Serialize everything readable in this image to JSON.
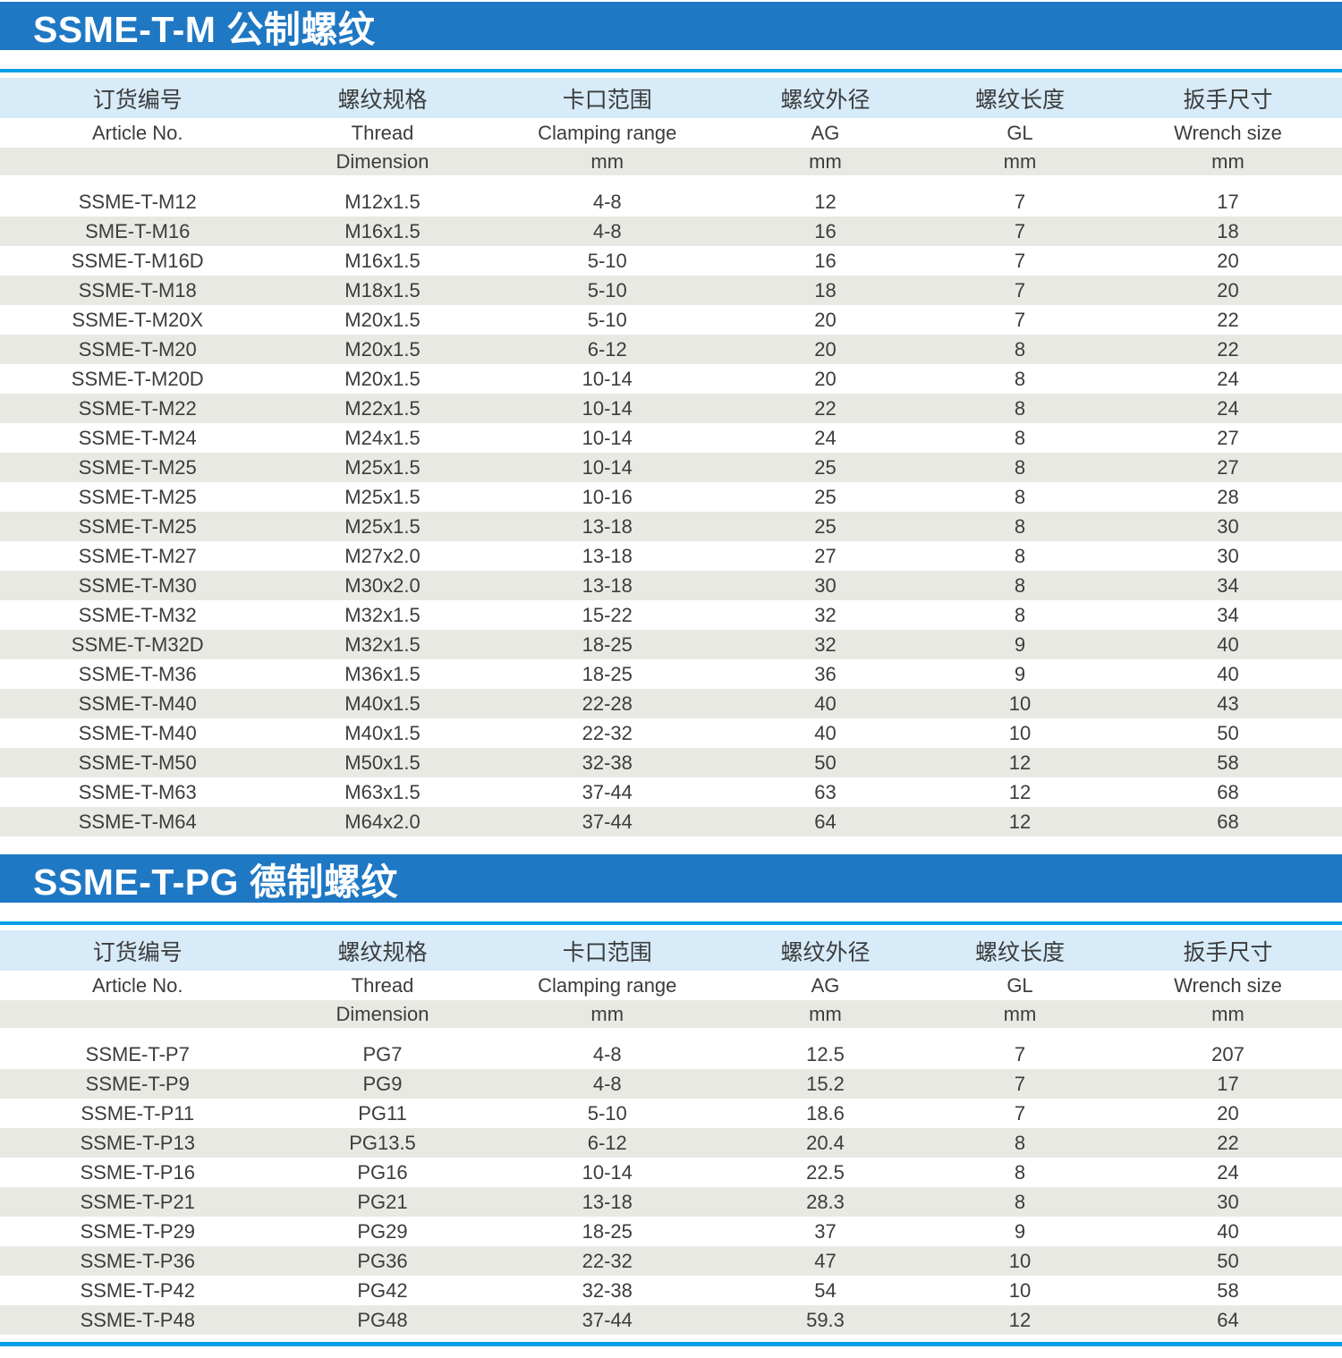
{
  "colors": {
    "title_bar_blue": "#1f78c4",
    "divider_blue": "#009ee8",
    "header_row_blue": "#d7ebf8",
    "alt_row_gray": "#e9e9e4",
    "text": "#3c3c3c",
    "title_text": "#ffffff"
  },
  "columns": [
    {
      "zh": "订货编号",
      "en": "Article No.",
      "unit": ""
    },
    {
      "zh": "螺纹规格",
      "en": "Thread",
      "unit": "Dimension"
    },
    {
      "zh": "卡口范围",
      "en": "Clamping range",
      "unit": "mm"
    },
    {
      "zh": "螺纹外径",
      "en": "AG",
      "unit": "mm"
    },
    {
      "zh": "螺纹长度",
      "en": "GL",
      "unit": "mm"
    },
    {
      "zh": "扳手尺寸",
      "en": "Wrench size",
      "unit": "mm"
    }
  ],
  "tables": [
    {
      "title": "SSME-T-M 公制螺纹",
      "rows": [
        [
          "SSME-T-M12",
          "M12x1.5",
          "4-8",
          "12",
          "7",
          "17"
        ],
        [
          "SME-T-M16",
          "M16x1.5",
          "4-8",
          "16",
          "7",
          "18"
        ],
        [
          "SSME-T-M16D",
          "M16x1.5",
          "5-10",
          "16",
          "7",
          "20"
        ],
        [
          "SSME-T-M18",
          "M18x1.5",
          "5-10",
          "18",
          "7",
          "20"
        ],
        [
          "SSME-T-M20X",
          "M20x1.5",
          "5-10",
          "20",
          "7",
          "22"
        ],
        [
          "SSME-T-M20",
          "M20x1.5",
          "6-12",
          "20",
          "8",
          "22"
        ],
        [
          "SSME-T-M20D",
          "M20x1.5",
          "10-14",
          "20",
          "8",
          "24"
        ],
        [
          "SSME-T-M22",
          "M22x1.5",
          "10-14",
          "22",
          "8",
          "24"
        ],
        [
          "SSME-T-M24",
          "M24x1.5",
          "10-14",
          "24",
          "8",
          "27"
        ],
        [
          "SSME-T-M25",
          "M25x1.5",
          "10-14",
          "25",
          "8",
          "27"
        ],
        [
          "SSME-T-M25",
          "M25x1.5",
          "10-16",
          "25",
          "8",
          "28"
        ],
        [
          "SSME-T-M25",
          "M25x1.5",
          "13-18",
          "25",
          "8",
          "30"
        ],
        [
          "SSME-T-M27",
          "M27x2.0",
          "13-18",
          "27",
          "8",
          "30"
        ],
        [
          "SSME-T-M30",
          "M30x2.0",
          "13-18",
          "30",
          "8",
          "34"
        ],
        [
          "SSME-T-M32",
          "M32x1.5",
          "15-22",
          "32",
          "8",
          "34"
        ],
        [
          "SSME-T-M32D",
          "M32x1.5",
          "18-25",
          "32",
          "9",
          "40"
        ],
        [
          "SSME-T-M36",
          "M36x1.5",
          "18-25",
          "36",
          "9",
          "40"
        ],
        [
          "SSME-T-M40",
          "M40x1.5",
          "22-28",
          "40",
          "10",
          "43"
        ],
        [
          "SSME-T-M40",
          "M40x1.5",
          "22-32",
          "40",
          "10",
          "50"
        ],
        [
          "SSME-T-M50",
          "M50x1.5",
          "32-38",
          "50",
          "12",
          "58"
        ],
        [
          "SSME-T-M63",
          "M63x1.5",
          "37-44",
          "63",
          "12",
          "68"
        ],
        [
          "SSME-T-M64",
          "M64x2.0",
          "37-44",
          "64",
          "12",
          "68"
        ]
      ]
    },
    {
      "title": "SSME-T-PG 德制螺纹",
      "rows": [
        [
          "SSME-T-P7",
          "PG7",
          "4-8",
          "12.5",
          "7",
          "207"
        ],
        [
          "SSME-T-P9",
          "PG9",
          "4-8",
          "15.2",
          "7",
          "17"
        ],
        [
          "SSME-T-P11",
          "PG11",
          "5-10",
          "18.6",
          "7",
          "20"
        ],
        [
          "SSME-T-P13",
          "PG13.5",
          "6-12",
          "20.4",
          "8",
          "22"
        ],
        [
          "SSME-T-P16",
          "PG16",
          "10-14",
          "22.5",
          "8",
          "24"
        ],
        [
          "SSME-T-P21",
          "PG21",
          "13-18",
          "28.3",
          "8",
          "30"
        ],
        [
          "SSME-T-P29",
          "PG29",
          "18-25",
          "37",
          "9",
          "40"
        ],
        [
          "SSME-T-P36",
          "PG36",
          "22-32",
          "47",
          "10",
          "50"
        ],
        [
          "SSME-T-P42",
          "PG42",
          "32-38",
          "54",
          "10",
          "58"
        ],
        [
          "SSME-T-P48",
          "PG48",
          "37-44",
          "59.3",
          "12",
          "64"
        ]
      ]
    }
  ]
}
